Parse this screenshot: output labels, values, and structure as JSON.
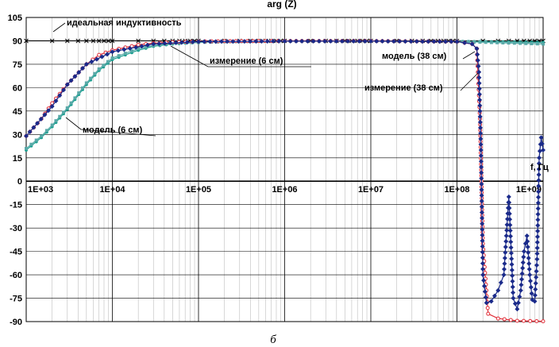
{
  "chart_data": {
    "type": "line",
    "title": "arg (Z)",
    "caption": "б",
    "x_axis_label": "f, Гц",
    "x_scale": "log",
    "xlim": [
      1000,
      1000000000
    ],
    "ylim": [
      -90,
      105
    ],
    "grid": true,
    "x_tick_labels": [
      "1E+03",
      "1E+04",
      "1E+05",
      "1E+06",
      "1E+07",
      "1E+08",
      "1E+09"
    ],
    "y_tick_labels": [
      "105",
      "90",
      "75",
      "60",
      "45",
      "30",
      "15",
      "0",
      "-15",
      "-30",
      "-45",
      "-60",
      "-75",
      "-90"
    ],
    "series": [
      {
        "name": "идеальная индуктивность",
        "color": "#000000",
        "marker": "x",
        "x": [
          1000,
          1000000000
        ],
        "y": [
          90,
          90
        ]
      },
      {
        "name": "модель (6 см)",
        "color": "#1a9e8f",
        "marker": "circle",
        "x": [
          1000,
          1500,
          2000,
          3000,
          5000,
          7000,
          10000,
          20000,
          30000,
          50000,
          100000,
          200000,
          500000,
          1000000,
          10000000,
          100000000,
          1000000000
        ],
        "y": [
          20,
          28,
          35,
          46,
          62,
          71,
          78,
          84,
          86.5,
          88,
          89,
          89.5,
          89.7,
          89.8,
          89.8,
          89.7,
          89
        ]
      },
      {
        "name": "измерение (6 см)",
        "color": "#5aa9a8",
        "marker": "square",
        "x": [
          1000,
          1500,
          2000,
          3000,
          5000,
          7000,
          10000,
          20000,
          30000,
          50000,
          100000,
          200000,
          500000,
          1000000,
          10000000,
          100000000,
          1000000000
        ],
        "y": [
          21,
          29,
          36,
          47,
          63,
          72,
          79,
          85,
          87,
          88.5,
          89,
          89.5,
          89.7,
          89.8,
          89.8,
          89.6,
          88
        ]
      },
      {
        "name": "модель (38 см)",
        "color": "#e0303a",
        "marker": "circle-open",
        "x": [
          1000,
          1500,
          2000,
          3000,
          5000,
          7000,
          10000,
          20000,
          30000,
          50000,
          100000,
          200000,
          500000,
          1000000,
          10000000,
          100000000,
          150000000,
          170000000,
          185000000,
          200000000,
          230000000,
          300000000,
          500000000,
          1000000000
        ],
        "y": [
          29,
          40,
          50,
          62,
          75,
          81,
          84,
          87.5,
          88.5,
          89.2,
          89.6,
          89.8,
          89.9,
          89.9,
          89.9,
          89.5,
          88,
          85,
          40,
          -40,
          -85,
          -88,
          -89.5,
          -89.8
        ]
      },
      {
        "name": "измерение (38 см)",
        "color": "#1a2a8a",
        "marker": "diamond",
        "x": [
          1000,
          2000,
          3000,
          5000,
          10000,
          30000,
          100000,
          1000000,
          10000000,
          100000000,
          150000000,
          170000000,
          180000000,
          190000000,
          200000000,
          220000000,
          250000000,
          300000000,
          350000000,
          400000000,
          450000000,
          500000000,
          550000000,
          600000000,
          650000000,
          700000000,
          750000000,
          800000000,
          850000000,
          900000000,
          950000000,
          1000000000
        ],
        "y": [
          29,
          48,
          62,
          75,
          83,
          88,
          89.5,
          89.8,
          89.8,
          89.5,
          88,
          85,
          70,
          20,
          -60,
          -78,
          -77,
          -70,
          -60,
          -10,
          -75,
          -82,
          -70,
          -45,
          -35,
          -60,
          -76,
          -77,
          -50,
          15,
          28,
          20
        ]
      }
    ],
    "annotations": [
      "идеальная индуктивность",
      "измерение (6 см)",
      "модель (6 см)",
      "модель (38 см)",
      "измерение (38 см)"
    ]
  }
}
